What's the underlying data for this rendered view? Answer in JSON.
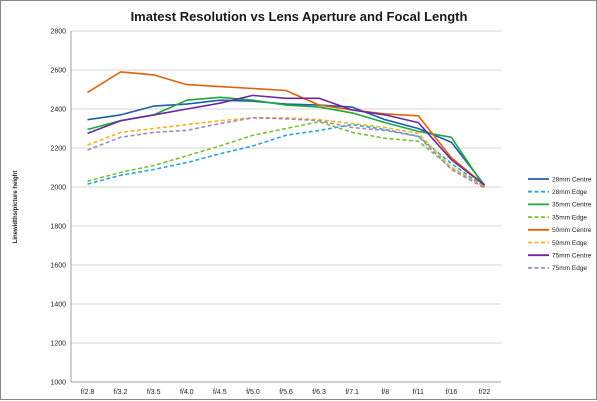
{
  "chart_data": {
    "type": "line",
    "title": "Imatest Resolution vs Lens Aperture and Focal Length",
    "xlabel": "",
    "ylabel": "Linewidths/picture height",
    "categories": [
      "f/2.8",
      "f/3.2",
      "f/3.5",
      "f/4.0",
      "f/4.5",
      "f/5.0",
      "f/5.6",
      "f/6.3",
      "f/7.1",
      "f/8",
      "f/11",
      "f/16",
      "f/22"
    ],
    "ylim": [
      1000,
      2800
    ],
    "yticks": [
      1000,
      1200,
      1400,
      1600,
      1800,
      2000,
      2200,
      2400,
      2600,
      2800
    ],
    "grid": true,
    "legend": "right",
    "series": [
      {
        "name": "28mm Centre",
        "color": "#1f5fa8",
        "dash": false,
        "values": [
          2345,
          2370,
          2415,
          2425,
          2445,
          2440,
          2425,
          2420,
          2410,
          2345,
          2300,
          2230,
          2010
        ]
      },
      {
        "name": "28mm Edge",
        "color": "#2aa5dc",
        "dash": true,
        "values": [
          2015,
          2060,
          2090,
          2125,
          2170,
          2210,
          2265,
          2290,
          2320,
          2295,
          2260,
          2120,
          2000
        ]
      },
      {
        "name": "35mm Centre",
        "color": "#1ea83f",
        "dash": false,
        "values": [
          2295,
          2340,
          2370,
          2445,
          2460,
          2445,
          2420,
          2410,
          2380,
          2330,
          2285,
          2255,
          2000
        ]
      },
      {
        "name": "35mm Edge",
        "color": "#7bbf3a",
        "dash": true,
        "values": [
          2030,
          2075,
          2110,
          2160,
          2210,
          2265,
          2300,
          2335,
          2280,
          2250,
          2235,
          2100,
          2000
        ]
      },
      {
        "name": "50mm Centre",
        "color": "#e0620f",
        "dash": false,
        "values": [
          2485,
          2590,
          2575,
          2525,
          2515,
          2505,
          2495,
          2420,
          2395,
          2375,
          2365,
          2150,
          2010
        ]
      },
      {
        "name": "50mm Edge",
        "color": "#f2b521",
        "dash": true,
        "values": [
          2215,
          2280,
          2300,
          2320,
          2340,
          2355,
          2355,
          2345,
          2325,
          2305,
          2275,
          2100,
          2000
        ]
      },
      {
        "name": "75mm Centre",
        "color": "#6a2a9e",
        "dash": false,
        "values": [
          2275,
          2340,
          2370,
          2400,
          2430,
          2470,
          2455,
          2455,
          2395,
          2370,
          2330,
          2140,
          2010
        ]
      },
      {
        "name": "75mm Edge",
        "color": "#a08ac0",
        "dash": true,
        "values": [
          2190,
          2255,
          2280,
          2290,
          2325,
          2355,
          2350,
          2340,
          2305,
          2290,
          2260,
          2090,
          1995
        ]
      }
    ]
  }
}
